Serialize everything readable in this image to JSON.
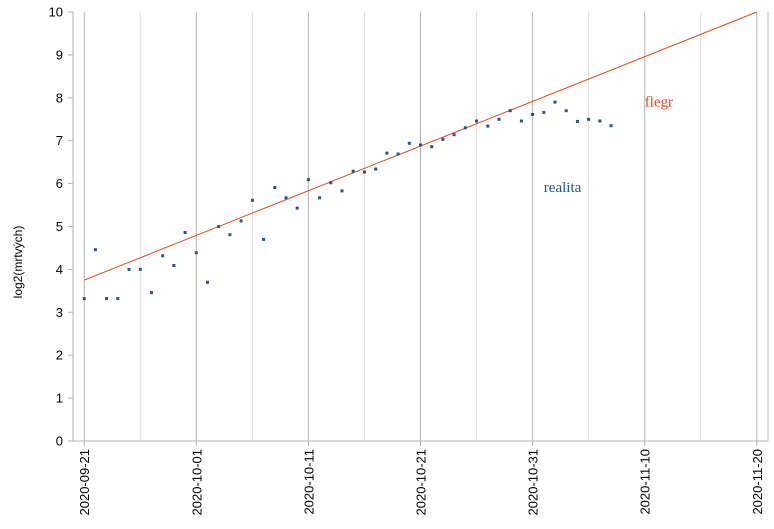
{
  "chart_data": {
    "type": "scatter",
    "title": "",
    "xlabel": "",
    "ylabel": "log2(mrtvých)",
    "xlim": [
      "2020-09-20",
      "2020-11-21"
    ],
    "ylim": [
      0,
      10
    ],
    "x_ticks": [
      "2020-09-21",
      "2020-10-01",
      "2020-10-11",
      "2020-10-21",
      "2020-10-31",
      "2020-11-10",
      "2020-11-20"
    ],
    "y_ticks": [
      0,
      1,
      2,
      3,
      4,
      5,
      6,
      7,
      8,
      9,
      10
    ],
    "grid": "vertical",
    "series": [
      {
        "name": "realita",
        "type": "scatter",
        "color": "#1f5591",
        "points": [
          {
            "x": "2020-09-21",
            "y": 3.32
          },
          {
            "x": "2020-09-22",
            "y": 4.46
          },
          {
            "x": "2020-09-23",
            "y": 3.32
          },
          {
            "x": "2020-09-24",
            "y": 3.32
          },
          {
            "x": "2020-09-25",
            "y": 4.0
          },
          {
            "x": "2020-09-26",
            "y": 4.0
          },
          {
            "x": "2020-09-27",
            "y": 3.46
          },
          {
            "x": "2020-09-28",
            "y": 4.32
          },
          {
            "x": "2020-09-29",
            "y": 4.09
          },
          {
            "x": "2020-09-30",
            "y": 4.86
          },
          {
            "x": "2020-10-01",
            "y": 4.39
          },
          {
            "x": "2020-10-02",
            "y": 3.7
          },
          {
            "x": "2020-10-03",
            "y": 5.0
          },
          {
            "x": "2020-10-04",
            "y": 4.81
          },
          {
            "x": "2020-10-05",
            "y": 5.13
          },
          {
            "x": "2020-10-06",
            "y": 5.61
          },
          {
            "x": "2020-10-07",
            "y": 4.7
          },
          {
            "x": "2020-10-08",
            "y": 5.91
          },
          {
            "x": "2020-10-09",
            "y": 5.67
          },
          {
            "x": "2020-10-10",
            "y": 5.43
          },
          {
            "x": "2020-10-11",
            "y": 6.09
          },
          {
            "x": "2020-10-12",
            "y": 5.67
          },
          {
            "x": "2020-10-13",
            "y": 6.02
          },
          {
            "x": "2020-10-14",
            "y": 5.83
          },
          {
            "x": "2020-10-15",
            "y": 6.29
          },
          {
            "x": "2020-10-16",
            "y": 6.27
          },
          {
            "x": "2020-10-17",
            "y": 6.34
          },
          {
            "x": "2020-10-18",
            "y": 6.71
          },
          {
            "x": "2020-10-19",
            "y": 6.69
          },
          {
            "x": "2020-10-20",
            "y": 6.94
          },
          {
            "x": "2020-10-21",
            "y": 6.9
          },
          {
            "x": "2020-10-22",
            "y": 6.86
          },
          {
            "x": "2020-10-23",
            "y": 7.03
          },
          {
            "x": "2020-10-24",
            "y": 7.14
          },
          {
            "x": "2020-10-25",
            "y": 7.3
          },
          {
            "x": "2020-10-26",
            "y": 7.46
          },
          {
            "x": "2020-10-27",
            "y": 7.34
          },
          {
            "x": "2020-10-28",
            "y": 7.5
          },
          {
            "x": "2020-10-29",
            "y": 7.7
          },
          {
            "x": "2020-10-30",
            "y": 7.46
          },
          {
            "x": "2020-10-31",
            "y": 7.61
          },
          {
            "x": "2020-11-01",
            "y": 7.66
          },
          {
            "x": "2020-11-02",
            "y": 7.9
          },
          {
            "x": "2020-11-03",
            "y": 7.7
          },
          {
            "x": "2020-11-04",
            "y": 7.45
          },
          {
            "x": "2020-11-05",
            "y": 7.5
          },
          {
            "x": "2020-11-06",
            "y": 7.46
          },
          {
            "x": "2020-11-07",
            "y": 7.35
          }
        ]
      },
      {
        "name": "flegr",
        "type": "line",
        "color": "#ee4411",
        "points": [
          {
            "x": "2020-09-21",
            "y": 3.75
          },
          {
            "x": "2020-11-20",
            "y": 10.0
          }
        ]
      }
    ],
    "annotations": [
      {
        "text": "flegr",
        "color": "#ee4411",
        "x": "2020-11-10",
        "y": 7.8
      },
      {
        "text": "realita",
        "color": "#1f5591",
        "x": "2020-11-01",
        "y": 5.8
      }
    ]
  }
}
